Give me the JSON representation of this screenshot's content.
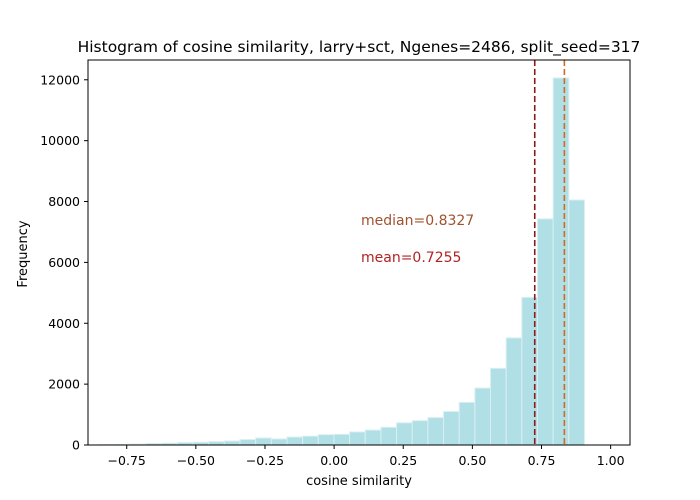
{
  "chart_data": {
    "type": "bar",
    "title": "Histogram of cosine similarity, larry+sct, Ngenes=2486, split_seed=317",
    "xlabel": "cosine similarity",
    "ylabel": "Frequency",
    "xlim": [
      -0.89,
      1.07
    ],
    "ylim": [
      0,
      12650
    ],
    "x_ticks": [
      -0.75,
      -0.5,
      -0.25,
      0.0,
      0.25,
      0.5,
      0.75,
      1.0
    ],
    "x_tick_labels": [
      "−0.75",
      "−0.50",
      "−0.25",
      "0.00",
      "0.25",
      "0.50",
      "0.75",
      "1.00"
    ],
    "y_ticks": [
      0,
      2000,
      4000,
      6000,
      8000,
      10000,
      12000
    ],
    "y_tick_labels": [
      "0",
      "2000",
      "4000",
      "6000",
      "8000",
      "10000",
      "12000"
    ],
    "bins": [
      {
        "x0": -0.85,
        "x1": -0.7934,
        "count": 10
      },
      {
        "x0": -0.7934,
        "x1": -0.7367,
        "count": 20
      },
      {
        "x0": -0.7367,
        "x1": -0.6801,
        "count": 30
      },
      {
        "x0": -0.6801,
        "x1": -0.6235,
        "count": 50
      },
      {
        "x0": -0.6235,
        "x1": -0.5669,
        "count": 60
      },
      {
        "x0": -0.5669,
        "x1": -0.5102,
        "count": 80
      },
      {
        "x0": -0.5102,
        "x1": -0.4536,
        "count": 90
      },
      {
        "x0": -0.4536,
        "x1": -0.397,
        "count": 110
      },
      {
        "x0": -0.397,
        "x1": -0.3404,
        "count": 130
      },
      {
        "x0": -0.3404,
        "x1": -0.2837,
        "count": 180
      },
      {
        "x0": -0.2837,
        "x1": -0.2271,
        "count": 230
      },
      {
        "x0": -0.2271,
        "x1": -0.1705,
        "count": 200
      },
      {
        "x0": -0.1705,
        "x1": -0.1139,
        "count": 260
      },
      {
        "x0": -0.1139,
        "x1": -0.0572,
        "count": 290
      },
      {
        "x0": -0.0572,
        "x1": -0.0006,
        "count": 340
      },
      {
        "x0": -0.0006,
        "x1": 0.056,
        "count": 350
      },
      {
        "x0": 0.056,
        "x1": 0.1126,
        "count": 430
      },
      {
        "x0": 0.1126,
        "x1": 0.1693,
        "count": 490
      },
      {
        "x0": 0.1693,
        "x1": 0.2259,
        "count": 580
      },
      {
        "x0": 0.2259,
        "x1": 0.2825,
        "count": 730
      },
      {
        "x0": 0.2825,
        "x1": 0.3391,
        "count": 800
      },
      {
        "x0": 0.3391,
        "x1": 0.3958,
        "count": 900
      },
      {
        "x0": 0.3958,
        "x1": 0.4524,
        "count": 1100
      },
      {
        "x0": 0.4524,
        "x1": 0.509,
        "count": 1400
      },
      {
        "x0": 0.509,
        "x1": 0.5656,
        "count": 1870
      },
      {
        "x0": 0.5656,
        "x1": 0.6223,
        "count": 2520
      },
      {
        "x0": 0.6223,
        "x1": 0.6789,
        "count": 3520
      },
      {
        "x0": 0.6789,
        "x1": 0.7355,
        "count": 4850
      },
      {
        "x0": 0.7355,
        "x1": 0.7921,
        "count": 7430
      },
      {
        "x0": 0.7921,
        "x1": 0.8488,
        "count": 12060
      },
      {
        "x0": 0.8488,
        "x1": 0.9054,
        "count": 8050
      }
    ],
    "median": 0.8327,
    "mean": 0.7255,
    "annotations": {
      "median_label": "median=0.8327",
      "mean_label": "mean=0.7255",
      "median_color": "#a0522d",
      "mean_color": "#b22222",
      "median_line_color": "#d2691e",
      "mean_line_color": "#8b1a1a"
    },
    "bar_color": "#b0dfe6",
    "bar_edge_color": "#dbeff2",
    "grid": false,
    "legend": "none"
  }
}
